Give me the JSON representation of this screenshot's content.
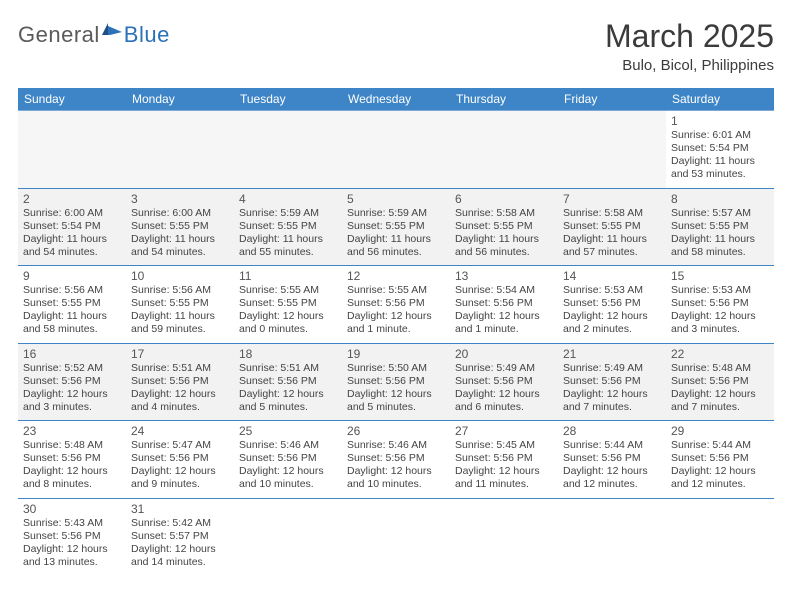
{
  "logo": {
    "general": "General",
    "blue": "Blue"
  },
  "title": "March 2025",
  "location": "Bulo, Bicol, Philippines",
  "colors": {
    "header_bg": "#3d85c6",
    "header_text": "#ffffff",
    "border": "#3d85c6",
    "shaded": "#f2f2f2",
    "text": "#444444",
    "logo_blue": "#2c72b8",
    "logo_gray": "#5a5a5a"
  },
  "weekdays": [
    "Sunday",
    "Monday",
    "Tuesday",
    "Wednesday",
    "Thursday",
    "Friday",
    "Saturday"
  ],
  "weeks": [
    [
      {
        "blank": true
      },
      {
        "blank": true
      },
      {
        "blank": true
      },
      {
        "blank": true
      },
      {
        "blank": true
      },
      {
        "blank": true
      },
      {
        "day": "1",
        "sunrise": "Sunrise: 6:01 AM",
        "sunset": "Sunset: 5:54 PM",
        "daylight": "Daylight: 11 hours and 53 minutes."
      }
    ],
    [
      {
        "day": "2",
        "sunrise": "Sunrise: 6:00 AM",
        "sunset": "Sunset: 5:54 PM",
        "daylight": "Daylight: 11 hours and 54 minutes.",
        "shaded": true
      },
      {
        "day": "3",
        "sunrise": "Sunrise: 6:00 AM",
        "sunset": "Sunset: 5:55 PM",
        "daylight": "Daylight: 11 hours and 54 minutes.",
        "shaded": true
      },
      {
        "day": "4",
        "sunrise": "Sunrise: 5:59 AM",
        "sunset": "Sunset: 5:55 PM",
        "daylight": "Daylight: 11 hours and 55 minutes.",
        "shaded": true
      },
      {
        "day": "5",
        "sunrise": "Sunrise: 5:59 AM",
        "sunset": "Sunset: 5:55 PM",
        "daylight": "Daylight: 11 hours and 56 minutes.",
        "shaded": true
      },
      {
        "day": "6",
        "sunrise": "Sunrise: 5:58 AM",
        "sunset": "Sunset: 5:55 PM",
        "daylight": "Daylight: 11 hours and 56 minutes.",
        "shaded": true
      },
      {
        "day": "7",
        "sunrise": "Sunrise: 5:58 AM",
        "sunset": "Sunset: 5:55 PM",
        "daylight": "Daylight: 11 hours and 57 minutes.",
        "shaded": true
      },
      {
        "day": "8",
        "sunrise": "Sunrise: 5:57 AM",
        "sunset": "Sunset: 5:55 PM",
        "daylight": "Daylight: 11 hours and 58 minutes.",
        "shaded": true
      }
    ],
    [
      {
        "day": "9",
        "sunrise": "Sunrise: 5:56 AM",
        "sunset": "Sunset: 5:55 PM",
        "daylight": "Daylight: 11 hours and 58 minutes."
      },
      {
        "day": "10",
        "sunrise": "Sunrise: 5:56 AM",
        "sunset": "Sunset: 5:55 PM",
        "daylight": "Daylight: 11 hours and 59 minutes."
      },
      {
        "day": "11",
        "sunrise": "Sunrise: 5:55 AM",
        "sunset": "Sunset: 5:55 PM",
        "daylight": "Daylight: 12 hours and 0 minutes."
      },
      {
        "day": "12",
        "sunrise": "Sunrise: 5:55 AM",
        "sunset": "Sunset: 5:56 PM",
        "daylight": "Daylight: 12 hours and 1 minute."
      },
      {
        "day": "13",
        "sunrise": "Sunrise: 5:54 AM",
        "sunset": "Sunset: 5:56 PM",
        "daylight": "Daylight: 12 hours and 1 minute."
      },
      {
        "day": "14",
        "sunrise": "Sunrise: 5:53 AM",
        "sunset": "Sunset: 5:56 PM",
        "daylight": "Daylight: 12 hours and 2 minutes."
      },
      {
        "day": "15",
        "sunrise": "Sunrise: 5:53 AM",
        "sunset": "Sunset: 5:56 PM",
        "daylight": "Daylight: 12 hours and 3 minutes."
      }
    ],
    [
      {
        "day": "16",
        "sunrise": "Sunrise: 5:52 AM",
        "sunset": "Sunset: 5:56 PM",
        "daylight": "Daylight: 12 hours and 3 minutes.",
        "shaded": true
      },
      {
        "day": "17",
        "sunrise": "Sunrise: 5:51 AM",
        "sunset": "Sunset: 5:56 PM",
        "daylight": "Daylight: 12 hours and 4 minutes.",
        "shaded": true
      },
      {
        "day": "18",
        "sunrise": "Sunrise: 5:51 AM",
        "sunset": "Sunset: 5:56 PM",
        "daylight": "Daylight: 12 hours and 5 minutes.",
        "shaded": true
      },
      {
        "day": "19",
        "sunrise": "Sunrise: 5:50 AM",
        "sunset": "Sunset: 5:56 PM",
        "daylight": "Daylight: 12 hours and 5 minutes.",
        "shaded": true
      },
      {
        "day": "20",
        "sunrise": "Sunrise: 5:49 AM",
        "sunset": "Sunset: 5:56 PM",
        "daylight": "Daylight: 12 hours and 6 minutes.",
        "shaded": true
      },
      {
        "day": "21",
        "sunrise": "Sunrise: 5:49 AM",
        "sunset": "Sunset: 5:56 PM",
        "daylight": "Daylight: 12 hours and 7 minutes.",
        "shaded": true
      },
      {
        "day": "22",
        "sunrise": "Sunrise: 5:48 AM",
        "sunset": "Sunset: 5:56 PM",
        "daylight": "Daylight: 12 hours and 7 minutes.",
        "shaded": true
      }
    ],
    [
      {
        "day": "23",
        "sunrise": "Sunrise: 5:48 AM",
        "sunset": "Sunset: 5:56 PM",
        "daylight": "Daylight: 12 hours and 8 minutes."
      },
      {
        "day": "24",
        "sunrise": "Sunrise: 5:47 AM",
        "sunset": "Sunset: 5:56 PM",
        "daylight": "Daylight: 12 hours and 9 minutes."
      },
      {
        "day": "25",
        "sunrise": "Sunrise: 5:46 AM",
        "sunset": "Sunset: 5:56 PM",
        "daylight": "Daylight: 12 hours and 10 minutes."
      },
      {
        "day": "26",
        "sunrise": "Sunrise: 5:46 AM",
        "sunset": "Sunset: 5:56 PM",
        "daylight": "Daylight: 12 hours and 10 minutes."
      },
      {
        "day": "27",
        "sunrise": "Sunrise: 5:45 AM",
        "sunset": "Sunset: 5:56 PM",
        "daylight": "Daylight: 12 hours and 11 minutes."
      },
      {
        "day": "28",
        "sunrise": "Sunrise: 5:44 AM",
        "sunset": "Sunset: 5:56 PM",
        "daylight": "Daylight: 12 hours and 12 minutes."
      },
      {
        "day": "29",
        "sunrise": "Sunrise: 5:44 AM",
        "sunset": "Sunset: 5:56 PM",
        "daylight": "Daylight: 12 hours and 12 minutes."
      }
    ],
    [
      {
        "day": "30",
        "sunrise": "Sunrise: 5:43 AM",
        "sunset": "Sunset: 5:56 PM",
        "daylight": "Daylight: 12 hours and 13 minutes."
      },
      {
        "day": "31",
        "sunrise": "Sunrise: 5:42 AM",
        "sunset": "Sunset: 5:57 PM",
        "daylight": "Daylight: 12 hours and 14 minutes."
      },
      {
        "blank": true
      },
      {
        "blank": true
      },
      {
        "blank": true
      },
      {
        "blank": true
      },
      {
        "blank": true
      }
    ]
  ]
}
